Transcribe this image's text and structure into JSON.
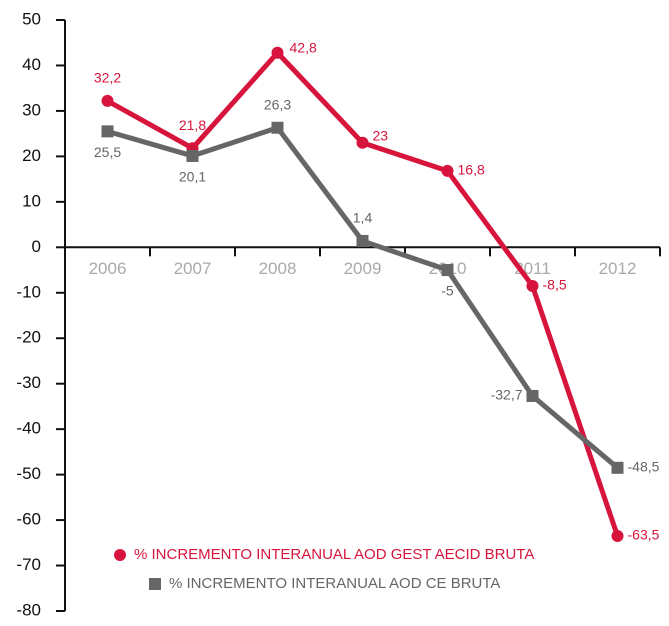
{
  "chart_data": {
    "type": "line",
    "categories": [
      "2006",
      "2007",
      "2008",
      "2009",
      "2010",
      "2011",
      "2012"
    ],
    "series": [
      {
        "name": "% INCREMENTO INTERANUAL AOD GEST AECID BRUTA",
        "color": "#d7143c",
        "marker": "circle",
        "values": [
          32.2,
          21.8,
          42.8,
          23,
          16.8,
          -8.5,
          -63.5
        ],
        "value_labels": [
          "32,2",
          "21,8",
          "42,8",
          "23",
          "16,8",
          "-8,5",
          "-63,5"
        ]
      },
      {
        "name": "% INCREMENTO INTERANUAL AOD CE BRUTA",
        "color": "#666666",
        "marker": "square",
        "values": [
          25.5,
          20.1,
          26.3,
          1.4,
          -5,
          -32.7,
          -48.5
        ],
        "value_labels": [
          "25,5",
          "20,1",
          "26,3",
          "1,4",
          "-5",
          "-32,7",
          "-48,5"
        ]
      }
    ],
    "ylim": [
      -80,
      50
    ],
    "yticks": [
      50,
      40,
      30,
      20,
      10,
      0,
      -10,
      -20,
      -30,
      -40,
      -50,
      -60,
      -70,
      -80
    ]
  }
}
